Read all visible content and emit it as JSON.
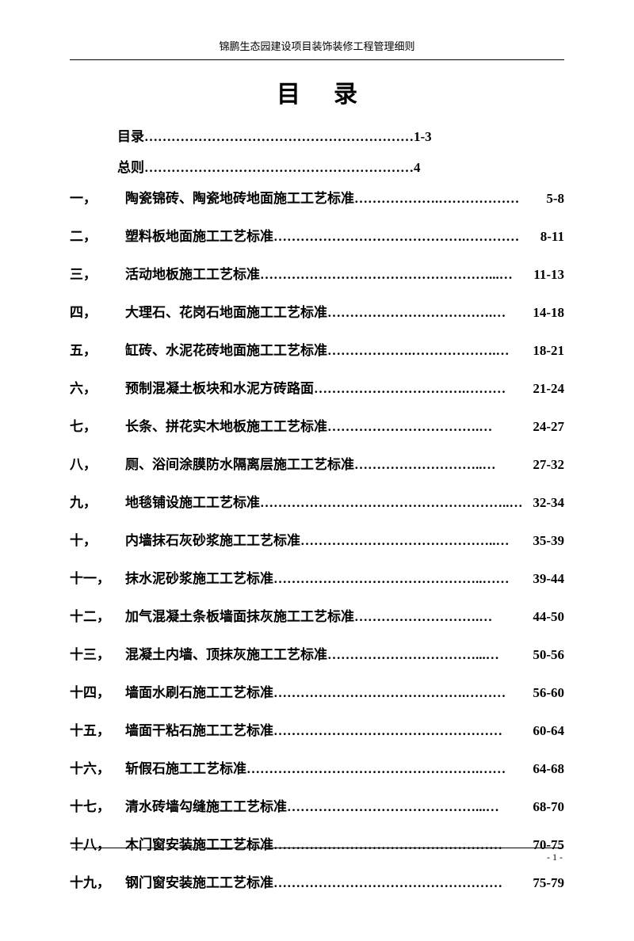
{
  "header": "锦鹏生态园建设项目装饰装修工程管理细则",
  "title": "目录",
  "intro": [
    {
      "label": "目录",
      "dots": "……………………………………………………",
      "page": "1-3"
    },
    {
      "label": "总则",
      "dots": "……………………………………………………",
      "page": "4"
    }
  ],
  "toc": [
    {
      "num": "一，",
      "label": "陶瓷锦砖、陶瓷地砖地面施工工艺标准",
      "dots": "……………….………………",
      "page": "5-8"
    },
    {
      "num": "二，",
      "label": "塑料板地面施工工艺标准",
      "dots": "…………………………………….…………",
      "page": "8-11"
    },
    {
      "num": "三，",
      "label": "活动地板施工工艺标准",
      "dots": "……………………………………………...…",
      "page": "11-13"
    },
    {
      "num": "四，",
      "label": "大理石、花岗石地面施工工艺标准",
      "dots": "……………………………….…",
      "page": "14-18"
    },
    {
      "num": "五，",
      "label": "缸砖、水泥花砖地面施工工艺标准",
      "dots": "……………….……………….…",
      "page": "18-21"
    },
    {
      "num": "六，",
      "label": "预制混凝土板块和水泥方砖路面",
      "dots": "…………………………….………",
      "page": "21-24"
    },
    {
      "num": "七，",
      "label": "长条、拼花实木地板施工工艺标准",
      "dots": "…………………………….…",
      "page": "24-27"
    },
    {
      "num": "八，",
      "label": "厕、浴间涂膜防水隔离层施工工艺标准",
      "dots": "………………………..…",
      "page": "27-32"
    },
    {
      "num": "九，",
      "label": "地毯铺设施工工艺标准",
      "dots": "………………………………………………..…",
      "page": "32-34"
    },
    {
      "num": "十，",
      "label": "内墙抹石灰砂浆施工工艺标准",
      "dots": "……………………………………..…",
      "page": "35-39"
    },
    {
      "num": "十一，",
      "label": "抹水泥砂浆施工工艺标准",
      "dots": "………………………………………..……",
      "page": "39-44"
    },
    {
      "num": "十二，",
      "label": "加气混凝土条板墙面抹灰施工工艺标准",
      "dots": "……………………….…",
      "page": "44-50"
    },
    {
      "num": "十三，",
      "label": "混凝土内墙、顶抹灰施工工艺标准",
      "dots": "……………………………...…",
      "page": "50-56"
    },
    {
      "num": "十四，",
      "label": "墙面水刷石施工工艺标准",
      "dots": "…………………………………….………",
      "page": "56-60"
    },
    {
      "num": "十五，",
      "label": "墙面干粘石施工工艺标准",
      "dots": "……………………………………………",
      "page": "60-64"
    },
    {
      "num": "十六，",
      "label": "斩假石施工工艺标准",
      "dots": "…………………………………………….……",
      "page": "64-68"
    },
    {
      "num": "十七，",
      "label": "清水砖墙勾缝施工工艺标准",
      "dots": "……………………………………...…",
      "page": "68-70"
    },
    {
      "num": "十八，",
      "label": "木门窗安装施工工艺标准",
      "dots": "……………………………………………",
      "page": "70-75"
    },
    {
      "num": "十九，",
      "label": "钢门窗安装施工工艺标准",
      "dots": "……………………………………………",
      "page": "75-79"
    }
  ],
  "page_number": "- 1 -"
}
